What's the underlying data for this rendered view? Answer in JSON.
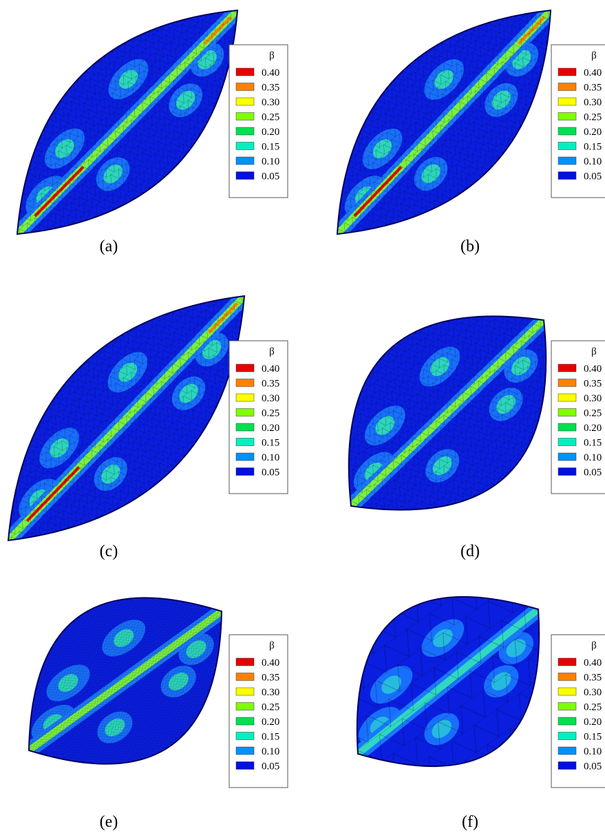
{
  "panels": [
    {
      "label": "(a)"
    },
    {
      "label": "(b)"
    },
    {
      "label": "(c)"
    },
    {
      "label": "(d)"
    },
    {
      "label": "(e)"
    },
    {
      "label": "(f)"
    }
  ],
  "legend": {
    "title": "β",
    "levels": [
      {
        "label": "0.40",
        "color": "#e60000"
      },
      {
        "label": "0.35",
        "color": "#ff8000"
      },
      {
        "label": "0.30",
        "color": "#ffff00"
      },
      {
        "label": "0.25",
        "color": "#80ff00"
      },
      {
        "label": "0.20",
        "color": "#00e050"
      },
      {
        "label": "0.15",
        "color": "#00f0c0"
      },
      {
        "label": "0.10",
        "color": "#0090ff"
      },
      {
        "label": "0.05",
        "color": "#0010e0"
      }
    ]
  }
}
